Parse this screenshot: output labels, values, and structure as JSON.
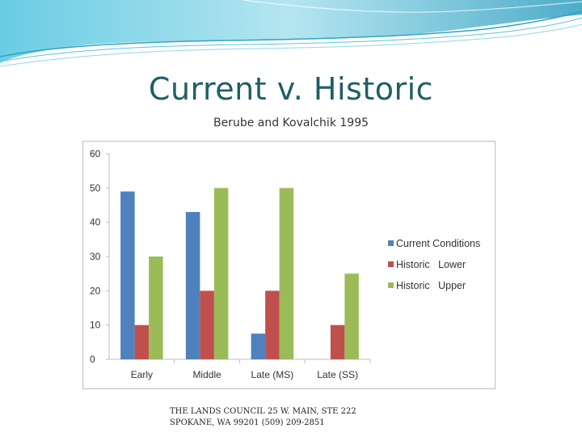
{
  "slide": {
    "title": "Current v. Historic",
    "subtitle": "Berube and Kovalchik 1995",
    "footer_line1": "THE LANDS COUNCIL 25 W. MAIN, STE 222",
    "footer_line2": "SPOKANE, WA 99201 (509) 209-2851",
    "accent_color": "#1f5f66",
    "header_wave_color": "#2ba6c4"
  },
  "chart_data": {
    "type": "bar",
    "categories": [
      "Early",
      "Middle",
      "Late (MS)",
      "Late (SS)"
    ],
    "series": [
      {
        "name": "Current Conditions",
        "color": "#4f81bd",
        "values": [
          49,
          43,
          7.5,
          null
        ]
      },
      {
        "name": "Historic   Lower",
        "color": "#c0504d",
        "values": [
          10,
          20,
          20,
          10
        ]
      },
      {
        "name": "Historic   Upper",
        "color": "#9bbb59",
        "values": [
          30,
          50,
          50,
          25
        ]
      }
    ],
    "title": "",
    "xlabel": "",
    "ylabel": "",
    "ylim": [
      0,
      60
    ],
    "yticks": [
      "0",
      "10",
      "20",
      "30",
      "40",
      "50",
      "60"
    ],
    "grid": false,
    "legend_position": "right"
  }
}
